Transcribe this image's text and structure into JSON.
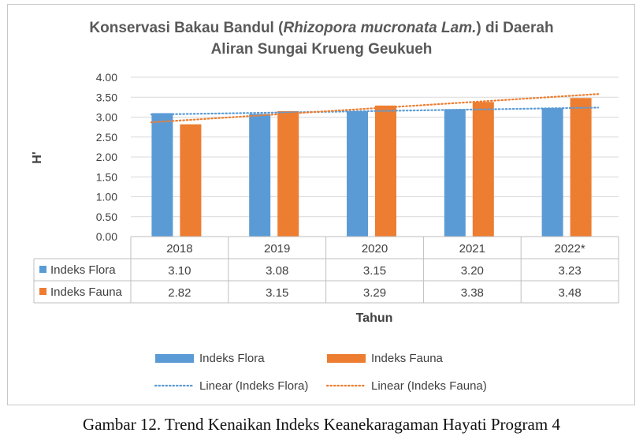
{
  "chart_data": {
    "type": "bar",
    "title_parts": {
      "line1_before": "Konservasi Bakau Bandul (",
      "line1_italic": "Rhizopora mucronata Lam.",
      "line1_after": ") di Daerah",
      "line2": "Aliran Sungai Krueng Geukueh"
    },
    "xlabel": "Tahun",
    "ylabel": "H'",
    "ylim": [
      0,
      4
    ],
    "yticks": [
      "0.00",
      "0.50",
      "1.00",
      "1.50",
      "2.00",
      "2.50",
      "3.00",
      "3.50",
      "4.00"
    ],
    "categories": [
      "2018",
      "2019",
      "2020",
      "2021",
      "2022*"
    ],
    "series": [
      {
        "name": "Indeks Flora",
        "color": "#5B9BD5",
        "values": [
          3.1,
          3.08,
          3.15,
          3.2,
          3.23
        ],
        "labels": [
          "3.10",
          "3.08",
          "3.15",
          "3.20",
          "3.23"
        ],
        "trend_name": "Linear (Indeks Flora)"
      },
      {
        "name": "Indeks Fauna",
        "color": "#ED7D31",
        "values": [
          2.82,
          3.15,
          3.29,
          3.38,
          3.48
        ],
        "labels": [
          "2.82",
          "3.15",
          "3.29",
          "3.38",
          "3.48"
        ],
        "trend_name": "Linear (Indeks Fauna)"
      }
    ],
    "grid": true,
    "data_table": true
  },
  "caption": "Gambar 12. Trend Kenaikan Indeks Keanekaragaman Hayati Program 4"
}
